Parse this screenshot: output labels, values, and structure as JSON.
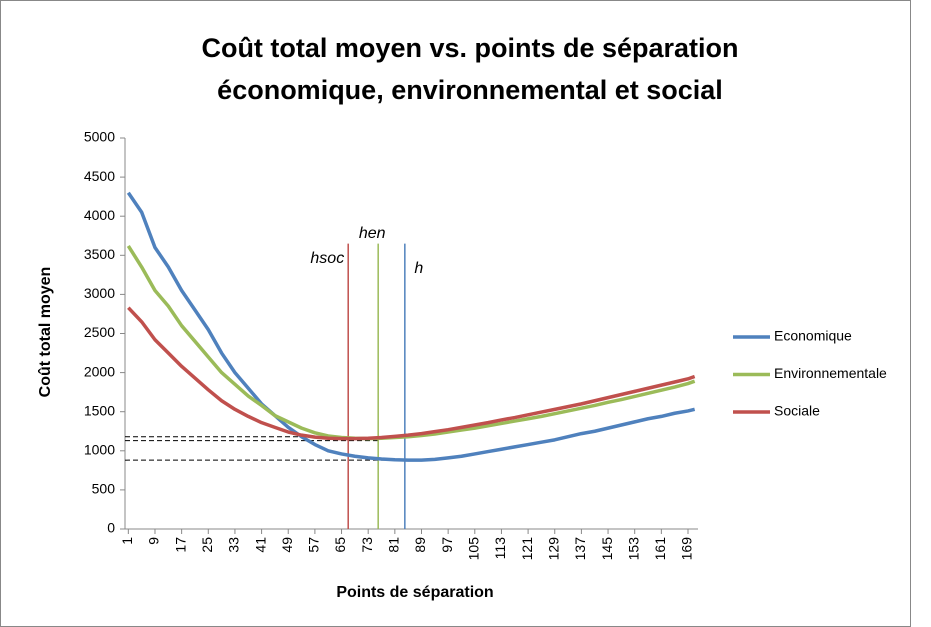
{
  "chart_data": {
    "type": "line",
    "title": [
      "Coût total moyen vs. points de séparation",
      "économique, environnemental et social"
    ],
    "xlabel": "Points de séparation",
    "ylabel": "Coût total moyen",
    "x": [
      1,
      5,
      9,
      13,
      17,
      21,
      25,
      29,
      33,
      37,
      41,
      45,
      49,
      53,
      57,
      61,
      65,
      69,
      73,
      77,
      81,
      85,
      89,
      93,
      97,
      101,
      105,
      109,
      113,
      117,
      121,
      125,
      129,
      133,
      137,
      141,
      145,
      149,
      153,
      157,
      161,
      165,
      169,
      171
    ],
    "series": [
      {
        "name": "Economique",
        "color": "#4f81bd",
        "values": [
          4300,
          4050,
          3600,
          3350,
          3050,
          2800,
          2550,
          2250,
          2000,
          1800,
          1600,
          1450,
          1300,
          1180,
          1080,
          1000,
          960,
          930,
          910,
          895,
          885,
          880,
          880,
          890,
          910,
          930,
          960,
          990,
          1020,
          1050,
          1080,
          1110,
          1140,
          1180,
          1220,
          1250,
          1290,
          1330,
          1370,
          1410,
          1440,
          1480,
          1510,
          1530
        ]
      },
      {
        "name": "Environnementale",
        "color": "#9bbb59",
        "values": [
          3620,
          3350,
          3050,
          2850,
          2600,
          2400,
          2200,
          2000,
          1850,
          1700,
          1580,
          1450,
          1370,
          1290,
          1230,
          1190,
          1170,
          1160,
          1155,
          1160,
          1170,
          1180,
          1195,
          1215,
          1240,
          1265,
          1290,
          1320,
          1350,
          1380,
          1410,
          1440,
          1475,
          1510,
          1545,
          1580,
          1620,
          1655,
          1695,
          1735,
          1775,
          1815,
          1860,
          1890
        ]
      },
      {
        "name": "Sociale",
        "color": "#c0504d",
        "values": [
          2830,
          2650,
          2420,
          2250,
          2080,
          1930,
          1780,
          1640,
          1530,
          1440,
          1360,
          1300,
          1240,
          1200,
          1175,
          1160,
          1155,
          1155,
          1160,
          1170,
          1185,
          1200,
          1220,
          1245,
          1270,
          1300,
          1330,
          1360,
          1395,
          1425,
          1460,
          1495,
          1530,
          1565,
          1600,
          1640,
          1680,
          1720,
          1760,
          1800,
          1840,
          1880,
          1920,
          1950
        ]
      }
    ],
    "xlim": [
      0,
      172
    ],
    "xticks": [
      1,
      9,
      17,
      25,
      33,
      41,
      49,
      57,
      65,
      73,
      81,
      89,
      97,
      105,
      113,
      121,
      129,
      137,
      145,
      153,
      161,
      169
    ],
    "ylim": [
      0,
      5000
    ],
    "yticks": [
      0,
      500,
      1000,
      1500,
      2000,
      2500,
      3000,
      3500,
      4000,
      4500,
      5000
    ],
    "grid": false,
    "legend": "right",
    "marker_top": 3650,
    "markers": [
      {
        "label": "hsoc",
        "x": 67,
        "y": 1180,
        "color": "#c0504d"
      },
      {
        "label": "hen",
        "x": 76,
        "y": 1130,
        "color": "#9bbb59"
      },
      {
        "label": "h",
        "x": 84,
        "y": 880,
        "color": "#4f81bd"
      }
    ]
  }
}
